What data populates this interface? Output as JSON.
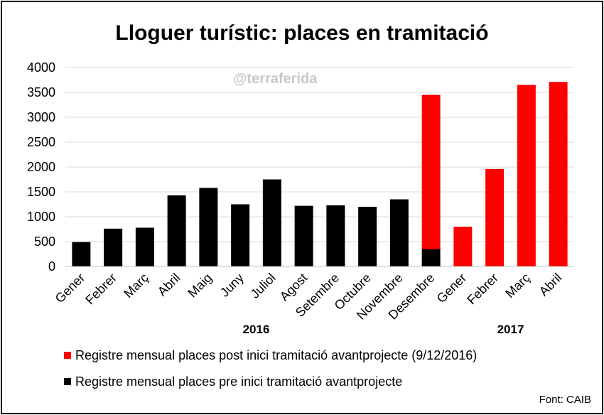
{
  "title": "Lloguer turístic: places en tramitació",
  "watermark": "@terraferida",
  "source_label": "Font:",
  "source_value": "CAIB",
  "colors": {
    "pre": "#000000",
    "post": "#ff0000",
    "grid": "#d9d9d9"
  },
  "chart_data": {
    "type": "bar",
    "stacked": true,
    "categories": [
      "Gener",
      "Febrer",
      "Març",
      "Abril",
      "Maig",
      "Juny",
      "Juliol",
      "Agost",
      "Setembre",
      "Octubre",
      "Novembre",
      "Desembre",
      "Gener",
      "Febrer",
      "Març",
      "Abril"
    ],
    "year_groups": [
      {
        "label": "2016",
        "from": 0,
        "to": 11
      },
      {
        "label": "2017",
        "from": 12,
        "to": 15
      }
    ],
    "series": [
      {
        "name": "Registre mensual places pre inici tramitació avantprojecte",
        "color": "#000000",
        "values": [
          490,
          760,
          780,
          1430,
          1580,
          1250,
          1750,
          1220,
          1230,
          1200,
          1350,
          350,
          0,
          0,
          0,
          0
        ]
      },
      {
        "name": "Registre mensual places post inici tramitació avantprojecte (9/12/2016)",
        "color": "#ff0000",
        "values": [
          0,
          0,
          0,
          0,
          0,
          0,
          0,
          0,
          0,
          0,
          0,
          3100,
          800,
          1960,
          3650,
          3710
        ]
      }
    ],
    "ylim": [
      0,
      4000
    ],
    "yticks": [
      0,
      500,
      1000,
      1500,
      2000,
      2500,
      3000,
      3500,
      4000
    ],
    "grid": true,
    "legend_position": "bottom"
  }
}
